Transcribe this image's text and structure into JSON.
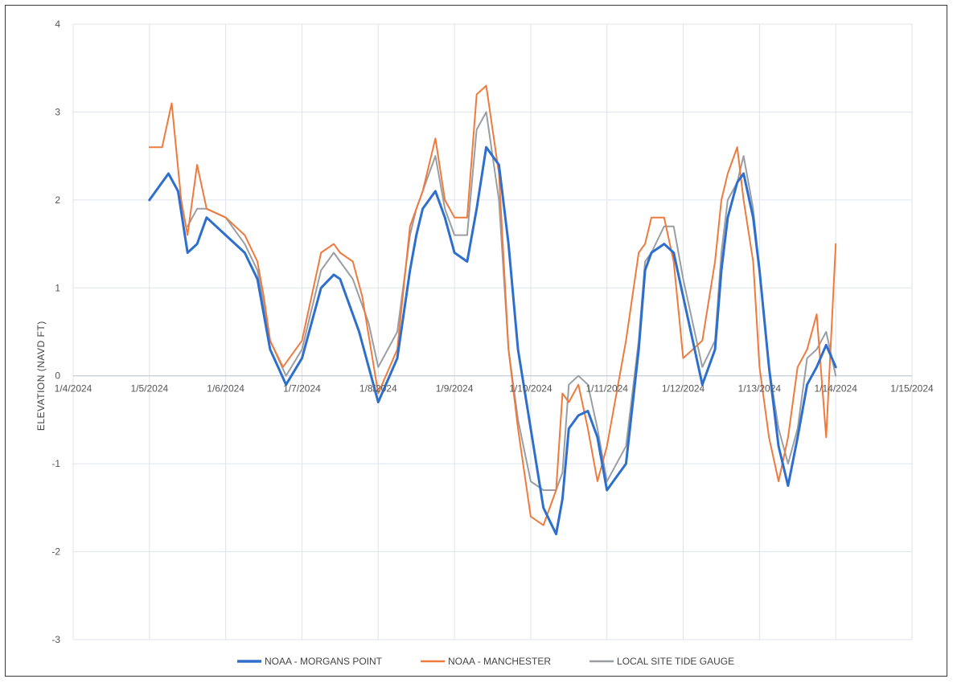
{
  "chart_data": {
    "type": "line",
    "title": "",
    "xlabel": "",
    "ylabel": "ELEVATION  (NAVD FT)",
    "ylim": [
      -3,
      4
    ],
    "yticks": [
      4,
      3,
      2,
      1,
      0,
      -1,
      -2,
      -3
    ],
    "xlim": [
      "1/4/2024",
      "1/15/2024"
    ],
    "xticks": [
      "1/4/2024",
      "1/5/2024",
      "1/6/2024",
      "1/7/2024",
      "1/8/2024",
      "1/9/2024",
      "1/10/2024",
      "1/11/2024",
      "1/12/2024",
      "1/13/2024",
      "1/14/2024",
      "1/15/2024"
    ],
    "grid": true,
    "legend_position": "bottom",
    "series": [
      {
        "name": "NOAA - MORGANS POINT",
        "color": "#2e6fce",
        "width": 3,
        "x": [
          "2024-01-05 00:00",
          "2024-01-05 06:00",
          "2024-01-05 09:00",
          "2024-01-05 12:00",
          "2024-01-05 15:00",
          "2024-01-05 18:00",
          "2024-01-06 00:00",
          "2024-01-06 06:00",
          "2024-01-06 10:00",
          "2024-01-06 12:00",
          "2024-01-06 14:00",
          "2024-01-06 19:00",
          "2024-01-07 00:00",
          "2024-01-07 06:00",
          "2024-01-07 10:00",
          "2024-01-07 12:00",
          "2024-01-07 14:00",
          "2024-01-07 18:00",
          "2024-01-08 00:00",
          "2024-01-08 06:00",
          "2024-01-08 10:00",
          "2024-01-08 12:00",
          "2024-01-08 14:00",
          "2024-01-08 18:00",
          "2024-01-08 21:00",
          "2024-01-09 00:00",
          "2024-01-09 04:00",
          "2024-01-09 07:00",
          "2024-01-09 10:00",
          "2024-01-09 14:00",
          "2024-01-09 17:00",
          "2024-01-09 20:00",
          "2024-01-10 00:00",
          "2024-01-10 04:00",
          "2024-01-10 08:00",
          "2024-01-10 10:00",
          "2024-01-10 12:00",
          "2024-01-10 15:00",
          "2024-01-10 18:00",
          "2024-01-10 21:00",
          "2024-01-11 00:00",
          "2024-01-11 06:00",
          "2024-01-11 10:00",
          "2024-01-11 12:00",
          "2024-01-11 14:00",
          "2024-01-11 18:00",
          "2024-01-11 21:00",
          "2024-01-12 00:00",
          "2024-01-12 06:00",
          "2024-01-12 10:00",
          "2024-01-12 12:00",
          "2024-01-12 14:00",
          "2024-01-12 17:00",
          "2024-01-12 19:00",
          "2024-01-12 22:00",
          "2024-01-13 00:00",
          "2024-01-13 03:00",
          "2024-01-13 06:00",
          "2024-01-13 09:00",
          "2024-01-13 12:00",
          "2024-01-13 15:00",
          "2024-01-13 18:00",
          "2024-01-13 21:00",
          "2024-01-14 00:00"
        ],
        "y": [
          2.0,
          2.3,
          2.1,
          1.4,
          1.5,
          1.8,
          1.6,
          1.4,
          1.1,
          0.7,
          0.3,
          -0.1,
          0.2,
          1.0,
          1.15,
          1.1,
          0.9,
          0.5,
          -0.3,
          0.2,
          1.2,
          1.6,
          1.9,
          2.1,
          1.8,
          1.4,
          1.3,
          1.9,
          2.6,
          2.4,
          1.5,
          0.3,
          -0.6,
          -1.5,
          -1.8,
          -1.4,
          -0.6,
          -0.45,
          -0.4,
          -0.7,
          -1.3,
          -1.0,
          0.3,
          1.2,
          1.4,
          1.5,
          1.4,
          0.9,
          -0.1,
          0.3,
          1.2,
          1.8,
          2.2,
          2.3,
          1.8,
          1.2,
          0.1,
          -0.8,
          -1.25,
          -0.7,
          -0.1,
          0.1,
          0.35,
          0.1
        ]
      },
      {
        "name": "NOAA - MANCHESTER",
        "color": "#ef7a3d",
        "width": 2,
        "x": [
          "2024-01-05 00:00",
          "2024-01-05 04:00",
          "2024-01-05 07:00",
          "2024-01-05 10:00",
          "2024-01-05 12:00",
          "2024-01-05 15:00",
          "2024-01-05 18:00",
          "2024-01-06 00:00",
          "2024-01-06 06:00",
          "2024-01-06 10:00",
          "2024-01-06 12:00",
          "2024-01-06 14:00",
          "2024-01-06 18:00",
          "2024-01-07 00:00",
          "2024-01-07 06:00",
          "2024-01-07 10:00",
          "2024-01-07 12:00",
          "2024-01-07 16:00",
          "2024-01-07 19:00",
          "2024-01-08 00:00",
          "2024-01-08 06:00",
          "2024-01-08 10:00",
          "2024-01-08 12:00",
          "2024-01-08 14:00",
          "2024-01-08 18:00",
          "2024-01-08 21:00",
          "2024-01-09 00:00",
          "2024-01-09 04:00",
          "2024-01-09 07:00",
          "2024-01-09 10:00",
          "2024-01-09 14:00",
          "2024-01-09 17:00",
          "2024-01-09 20:00",
          "2024-01-10 00:00",
          "2024-01-10 04:00",
          "2024-01-10 08:00",
          "2024-01-10 10:00",
          "2024-01-10 12:00",
          "2024-01-10 15:00",
          "2024-01-10 18:00",
          "2024-01-10 21:00",
          "2024-01-11 00:00",
          "2024-01-11 06:00",
          "2024-01-11 10:00",
          "2024-01-11 12:00",
          "2024-01-11 14:00",
          "2024-01-11 18:00",
          "2024-01-11 21:00",
          "2024-01-12 00:00",
          "2024-01-12 06:00",
          "2024-01-12 10:00",
          "2024-01-12 12:00",
          "2024-01-12 14:00",
          "2024-01-12 17:00",
          "2024-01-12 19:00",
          "2024-01-12 22:00",
          "2024-01-13 00:00",
          "2024-01-13 03:00",
          "2024-01-13 06:00",
          "2024-01-13 09:00",
          "2024-01-13 12:00",
          "2024-01-13 15:00",
          "2024-01-13 18:00",
          "2024-01-13 21:00",
          "2024-01-14 00:00"
        ],
        "y": [
          2.6,
          2.6,
          3.1,
          2.0,
          1.6,
          2.4,
          1.9,
          1.8,
          1.6,
          1.3,
          0.9,
          0.4,
          0.1,
          0.4,
          1.4,
          1.5,
          1.4,
          1.3,
          0.9,
          -0.2,
          0.3,
          1.7,
          1.9,
          2.1,
          2.7,
          2.0,
          1.8,
          1.8,
          3.2,
          3.3,
          2.3,
          0.3,
          -0.6,
          -1.6,
          -1.7,
          -1.3,
          -0.2,
          -0.3,
          -0.1,
          -0.6,
          -1.2,
          -0.8,
          0.4,
          1.4,
          1.5,
          1.8,
          1.8,
          1.3,
          0.2,
          0.4,
          1.3,
          2.0,
          2.3,
          2.6,
          2.0,
          1.3,
          0.1,
          -0.7,
          -1.2,
          -0.7,
          0.1,
          0.3,
          0.7,
          -0.7,
          1.5
        ]
      },
      {
        "name": "LOCAL SITE TIDE GAUGE",
        "color": "#9a9ea3",
        "width": 2,
        "x": [
          "2024-01-05 12:00",
          "2024-01-05 15:00",
          "2024-01-05 18:00",
          "2024-01-06 00:00",
          "2024-01-06 06:00",
          "2024-01-06 10:00",
          "2024-01-06 12:00",
          "2024-01-06 14:00",
          "2024-01-06 19:00",
          "2024-01-07 00:00",
          "2024-01-07 06:00",
          "2024-01-07 10:00",
          "2024-01-07 12:00",
          "2024-01-07 16:00",
          "2024-01-07 21:00",
          "2024-01-08 00:00",
          "2024-01-08 06:00",
          "2024-01-08 10:00",
          "2024-01-08 12:00",
          "2024-01-08 14:00",
          "2024-01-08 18:00",
          "2024-01-08 21:00",
          "2024-01-09 00:00",
          "2024-01-09 04:00",
          "2024-01-09 07:00",
          "2024-01-09 10:00",
          "2024-01-09 14:00",
          "2024-01-09 17:00",
          "2024-01-09 20:00",
          "2024-01-10 00:00",
          "2024-01-10 04:00",
          "2024-01-10 08:00",
          "2024-01-10 10:00",
          "2024-01-10 12:00",
          "2024-01-10 15:00",
          "2024-01-10 18:00",
          "2024-01-10 21:00",
          "2024-01-11 00:00",
          "2024-01-11 06:00",
          "2024-01-11 10:00",
          "2024-01-11 12:00",
          "2024-01-11 14:00",
          "2024-01-11 18:00",
          "2024-01-11 21:00",
          "2024-01-12 00:00",
          "2024-01-12 06:00",
          "2024-01-12 10:00",
          "2024-01-12 12:00",
          "2024-01-12 14:00",
          "2024-01-12 17:00",
          "2024-01-12 19:00",
          "2024-01-12 22:00",
          "2024-01-13 00:00",
          "2024-01-13 03:00",
          "2024-01-13 06:00",
          "2024-01-13 09:00",
          "2024-01-13 12:00",
          "2024-01-13 15:00",
          "2024-01-13 18:00",
          "2024-01-13 21:00",
          "2024-01-14 00:00"
        ],
        "y": [
          1.7,
          1.9,
          1.9,
          1.8,
          1.5,
          1.2,
          0.8,
          0.4,
          0.0,
          0.3,
          1.2,
          1.4,
          1.3,
          1.1,
          0.6,
          0.1,
          0.5,
          1.6,
          1.9,
          2.1,
          2.5,
          1.9,
          1.6,
          1.6,
          2.8,
          3.0,
          2.0,
          0.3,
          -0.5,
          -1.2,
          -1.3,
          -1.3,
          -1.1,
          -0.1,
          0.0,
          -0.1,
          -0.6,
          -1.2,
          -0.8,
          0.4,
          1.3,
          1.4,
          1.7,
          1.7,
          1.1,
          0.1,
          0.4,
          1.4,
          2.0,
          2.2,
          2.5,
          1.9,
          1.2,
          0.1,
          -0.6,
          -1.0,
          -0.6,
          0.2,
          0.3,
          0.5,
          0.0
        ]
      }
    ]
  }
}
